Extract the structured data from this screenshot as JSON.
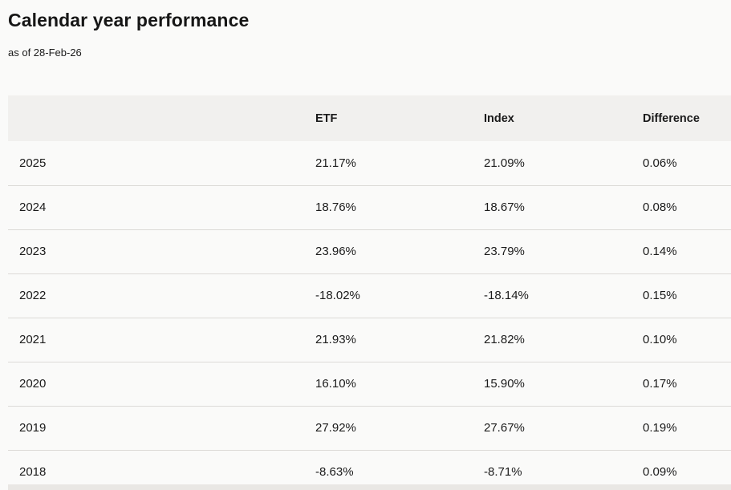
{
  "header": {
    "title": "Calendar year performance",
    "as_of": "as of 28-Feb-26"
  },
  "table": {
    "columns": [
      "",
      "ETF",
      "Index",
      "Difference"
    ],
    "row_keys": [
      "year",
      "etf",
      "index",
      "difference"
    ],
    "rows": [
      {
        "year": "2025",
        "etf": "21.17%",
        "index": "21.09%",
        "difference": "0.06%"
      },
      {
        "year": "2024",
        "etf": "18.76%",
        "index": "18.67%",
        "difference": "0.08%"
      },
      {
        "year": "2023",
        "etf": "23.96%",
        "index": "23.79%",
        "difference": "0.14%"
      },
      {
        "year": "2022",
        "etf": "-18.02%",
        "index": "-18.14%",
        "difference": "0.15%"
      },
      {
        "year": "2021",
        "etf": "21.93%",
        "index": "21.82%",
        "difference": "0.10%"
      },
      {
        "year": "2020",
        "etf": "16.10%",
        "index": "15.90%",
        "difference": "0.17%"
      },
      {
        "year": "2019",
        "etf": "27.92%",
        "index": "27.67%",
        "difference": "0.19%"
      },
      {
        "year": "2018",
        "etf": "-8.63%",
        "index": "-8.71%",
        "difference": "0.09%"
      }
    ]
  },
  "colors": {
    "page_background": "#fafaf9",
    "header_band": "#f1f0ee",
    "divider": "#dcdad7",
    "text": "#1b1b1b",
    "scrollbar_track": "#e9e7e4"
  }
}
